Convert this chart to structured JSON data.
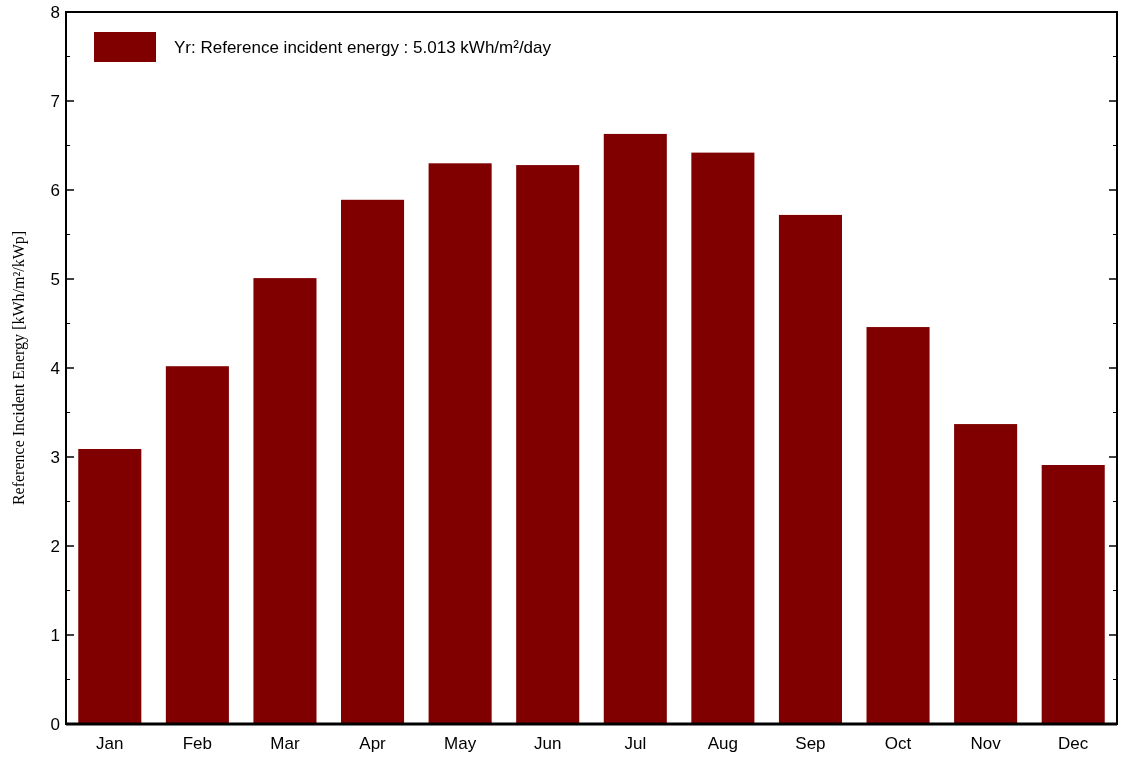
{
  "chart_data": {
    "type": "bar",
    "ylabel": "Reference Incident Energy [kWh/m²/kWp]",
    "categories": [
      "Jan",
      "Feb",
      "Mar",
      "Apr",
      "May",
      "Jun",
      "Jul",
      "Aug",
      "Sep",
      "Oct",
      "Nov",
      "Dec"
    ],
    "series": [
      {
        "name": "Yr: Reference incident energy :  5.013 kWh/m²/day",
        "color": "#800000",
        "values": [
          3.09,
          4.02,
          5.01,
          5.89,
          6.3,
          6.28,
          6.63,
          6.42,
          5.72,
          4.46,
          3.37,
          2.91
        ]
      }
    ],
    "ylim": [
      0,
      8
    ],
    "yticks": [
      0,
      1,
      2,
      3,
      4,
      5,
      6,
      7,
      8
    ],
    "legend": "top left",
    "grid": false
  }
}
